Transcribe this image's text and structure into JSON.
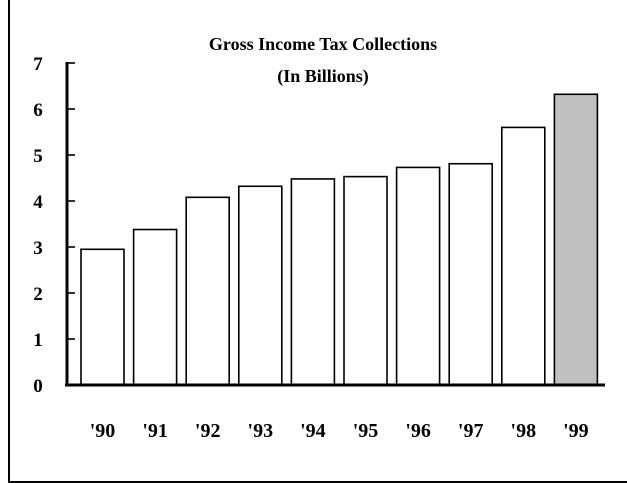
{
  "chart_data": {
    "type": "bar",
    "title": "Gross Income Tax Collections",
    "subtitle": "(In Billions)",
    "xlabel": "",
    "ylabel": "",
    "categories": [
      "'90",
      "'91",
      "'92",
      "'93",
      "'94",
      "'95",
      "'96",
      "'97",
      "'98",
      "'99"
    ],
    "values": [
      2.95,
      3.38,
      4.08,
      4.32,
      4.48,
      4.53,
      4.73,
      4.81,
      5.6,
      6.32
    ],
    "ylim": [
      0,
      7
    ],
    "yticks": [
      0,
      1,
      2,
      3,
      4,
      5,
      6,
      7
    ],
    "grid": false,
    "colors": {
      "bar_fill": "#ffffff",
      "highlight_fill": "#c0c0c0",
      "highlight_index": 9,
      "stroke": "#000000"
    }
  }
}
